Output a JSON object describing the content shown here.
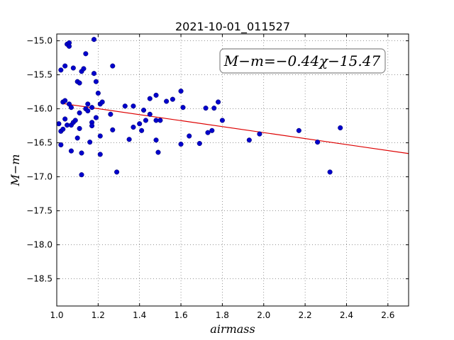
{
  "chart_data": {
    "type": "scatter",
    "title": "2021-10-01_011527",
    "xlabel": "airmass",
    "ylabel": "M−m",
    "xlim": [
      1.0,
      2.7
    ],
    "ylim": [
      -18.9,
      -14.9
    ],
    "y_inverted": true,
    "grid": true,
    "xticks": [
      1.0,
      1.2,
      1.4,
      1.6,
      1.8,
      2.0,
      2.2,
      2.4,
      2.6
    ],
    "xtick_labels": [
      "1.0",
      "1.2",
      "1.4",
      "1.6",
      "1.8",
      "2.0",
      "2.2",
      "2.4",
      "2.6"
    ],
    "yticks": [
      -15.0,
      -15.5,
      -16.0,
      -16.5,
      -17.0,
      -17.5,
      -18.0,
      -18.5
    ],
    "ytick_labels": [
      "−15.0",
      "−15.5",
      "−16.0",
      "−16.5",
      "−17.0",
      "−17.5",
      "−18.0",
      "−18.5"
    ],
    "annotation": "M−m=−0.44χ−15.47",
    "annotation_placement": "top-right",
    "points_color": "#0000cc",
    "fit_color": "#dd0000",
    "fit": {
      "slope": -0.44,
      "intercept": -15.47,
      "x_range": [
        1.02,
        2.7
      ]
    },
    "points": [
      [
        1.01,
        -16.22
      ],
      [
        1.02,
        -15.43
      ],
      [
        1.02,
        -16.33
      ],
      [
        1.02,
        -16.53
      ],
      [
        1.03,
        -16.3
      ],
      [
        1.03,
        -15.9
      ],
      [
        1.04,
        -15.37
      ],
      [
        1.04,
        -15.88
      ],
      [
        1.04,
        -16.15
      ],
      [
        1.05,
        -16.24
      ],
      [
        1.05,
        -15.05
      ],
      [
        1.06,
        -15.03
      ],
      [
        1.06,
        -15.08
      ],
      [
        1.06,
        -15.93
      ],
      [
        1.07,
        -15.98
      ],
      [
        1.07,
        -16.24
      ],
      [
        1.07,
        -16.62
      ],
      [
        1.08,
        -15.4
      ],
      [
        1.08,
        -16.2
      ],
      [
        1.09,
        -16.17
      ],
      [
        1.1,
        -16.43
      ],
      [
        1.1,
        -15.6
      ],
      [
        1.11,
        -15.62
      ],
      [
        1.11,
        -16.06
      ],
      [
        1.11,
        -16.29
      ],
      [
        1.12,
        -16.65
      ],
      [
        1.12,
        -16.97
      ],
      [
        1.12,
        -15.45
      ],
      [
        1.13,
        -15.41
      ],
      [
        1.14,
        -15.19
      ],
      [
        1.14,
        -16.0
      ],
      [
        1.15,
        -15.93
      ],
      [
        1.15,
        -16.03
      ],
      [
        1.16,
        -16.49
      ],
      [
        1.17,
        -15.98
      ],
      [
        1.17,
        -16.2
      ],
      [
        1.17,
        -16.25
      ],
      [
        1.18,
        -15.48
      ],
      [
        1.18,
        -14.98
      ],
      [
        1.19,
        -15.6
      ],
      [
        1.19,
        -16.13
      ],
      [
        1.2,
        -15.77
      ],
      [
        1.21,
        -15.93
      ],
      [
        1.21,
        -16.4
      ],
      [
        1.21,
        -16.67
      ],
      [
        1.22,
        -15.9
      ],
      [
        1.26,
        -16.08
      ],
      [
        1.27,
        -15.37
      ],
      [
        1.27,
        -16.31
      ],
      [
        1.29,
        -16.93
      ],
      [
        1.33,
        -15.96
      ],
      [
        1.35,
        -16.45
      ],
      [
        1.37,
        -15.96
      ],
      [
        1.37,
        -16.27
      ],
      [
        1.4,
        -16.22
      ],
      [
        1.41,
        -16.32
      ],
      [
        1.42,
        -16.02
      ],
      [
        1.43,
        -16.17
      ],
      [
        1.45,
        -16.08
      ],
      [
        1.45,
        -15.85
      ],
      [
        1.48,
        -15.8
      ],
      [
        1.48,
        -16.17
      ],
      [
        1.48,
        -16.46
      ],
      [
        1.49,
        -16.64
      ],
      [
        1.5,
        -16.17
      ],
      [
        1.53,
        -15.89
      ],
      [
        1.56,
        -15.86
      ],
      [
        1.6,
        -15.74
      ],
      [
        1.61,
        -15.98
      ],
      [
        1.6,
        -16.52
      ],
      [
        1.64,
        -16.4
      ],
      [
        1.69,
        -16.51
      ],
      [
        1.72,
        -15.99
      ],
      [
        1.73,
        -16.35
      ],
      [
        1.75,
        -16.32
      ],
      [
        1.76,
        -15.99
      ],
      [
        1.78,
        -15.9
      ],
      [
        1.8,
        -16.17
      ],
      [
        1.93,
        -16.46
      ],
      [
        1.98,
        -16.37
      ],
      [
        2.17,
        -16.32
      ],
      [
        2.26,
        -16.49
      ],
      [
        2.32,
        -16.93
      ],
      [
        2.37,
        -16.28
      ]
    ]
  }
}
